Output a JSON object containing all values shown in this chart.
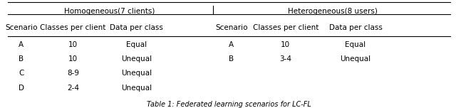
{
  "title": "Table 1: Federated learning scenarios for LC-FL",
  "homogeneous_header": "Homogeneous(7 clients)",
  "heterogeneous_header": "Heterogeneous(8 users)",
  "col_headers": [
    "Scenario",
    "Classes per client",
    "Data per class",
    "Scenario",
    "Classes per client",
    "Data per class"
  ],
  "homo_rows": [
    [
      "A",
      "10",
      "Equal"
    ],
    [
      "B",
      "10",
      "Unequal"
    ],
    [
      "C",
      "8-9",
      "Unequal"
    ],
    [
      "D",
      "2-4",
      "Unequal"
    ]
  ],
  "hetero_rows": [
    [
      "A",
      "10",
      "Equal"
    ],
    [
      "B",
      "3-4",
      "Unequal"
    ],
    [
      "",
      "",
      ""
    ],
    [
      "",
      "",
      ""
    ]
  ],
  "background_color": "#f5f5f5",
  "font_size": 7.5,
  "header_font_size": 7.5,
  "title_font_size": 7.0
}
